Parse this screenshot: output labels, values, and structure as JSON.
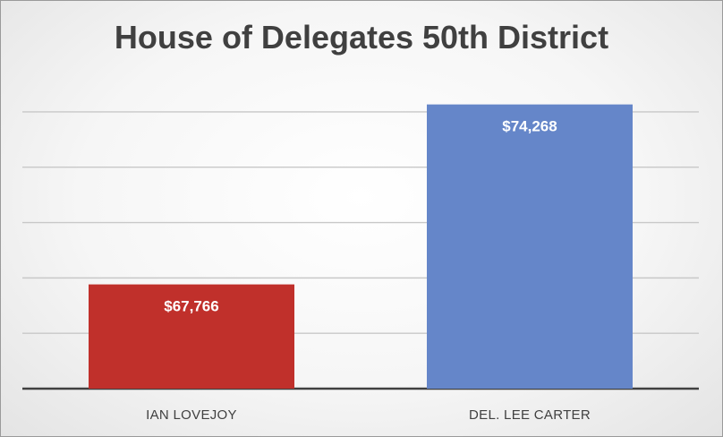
{
  "chart_data": {
    "type": "bar",
    "title": "House of Delegates 50th District",
    "categories": [
      "IAN LOVEJOY",
      "DEL. LEE CARTER"
    ],
    "values": [
      67766,
      74268
    ],
    "data_labels": [
      "$67,766",
      "$74,268"
    ],
    "colors": [
      "#c0302b",
      "#6586c9"
    ],
    "ylim": [
      64000,
      75000
    ],
    "gridline_step": 2000,
    "grid": true,
    "legend": "none",
    "xlabel": "",
    "ylabel": ""
  }
}
